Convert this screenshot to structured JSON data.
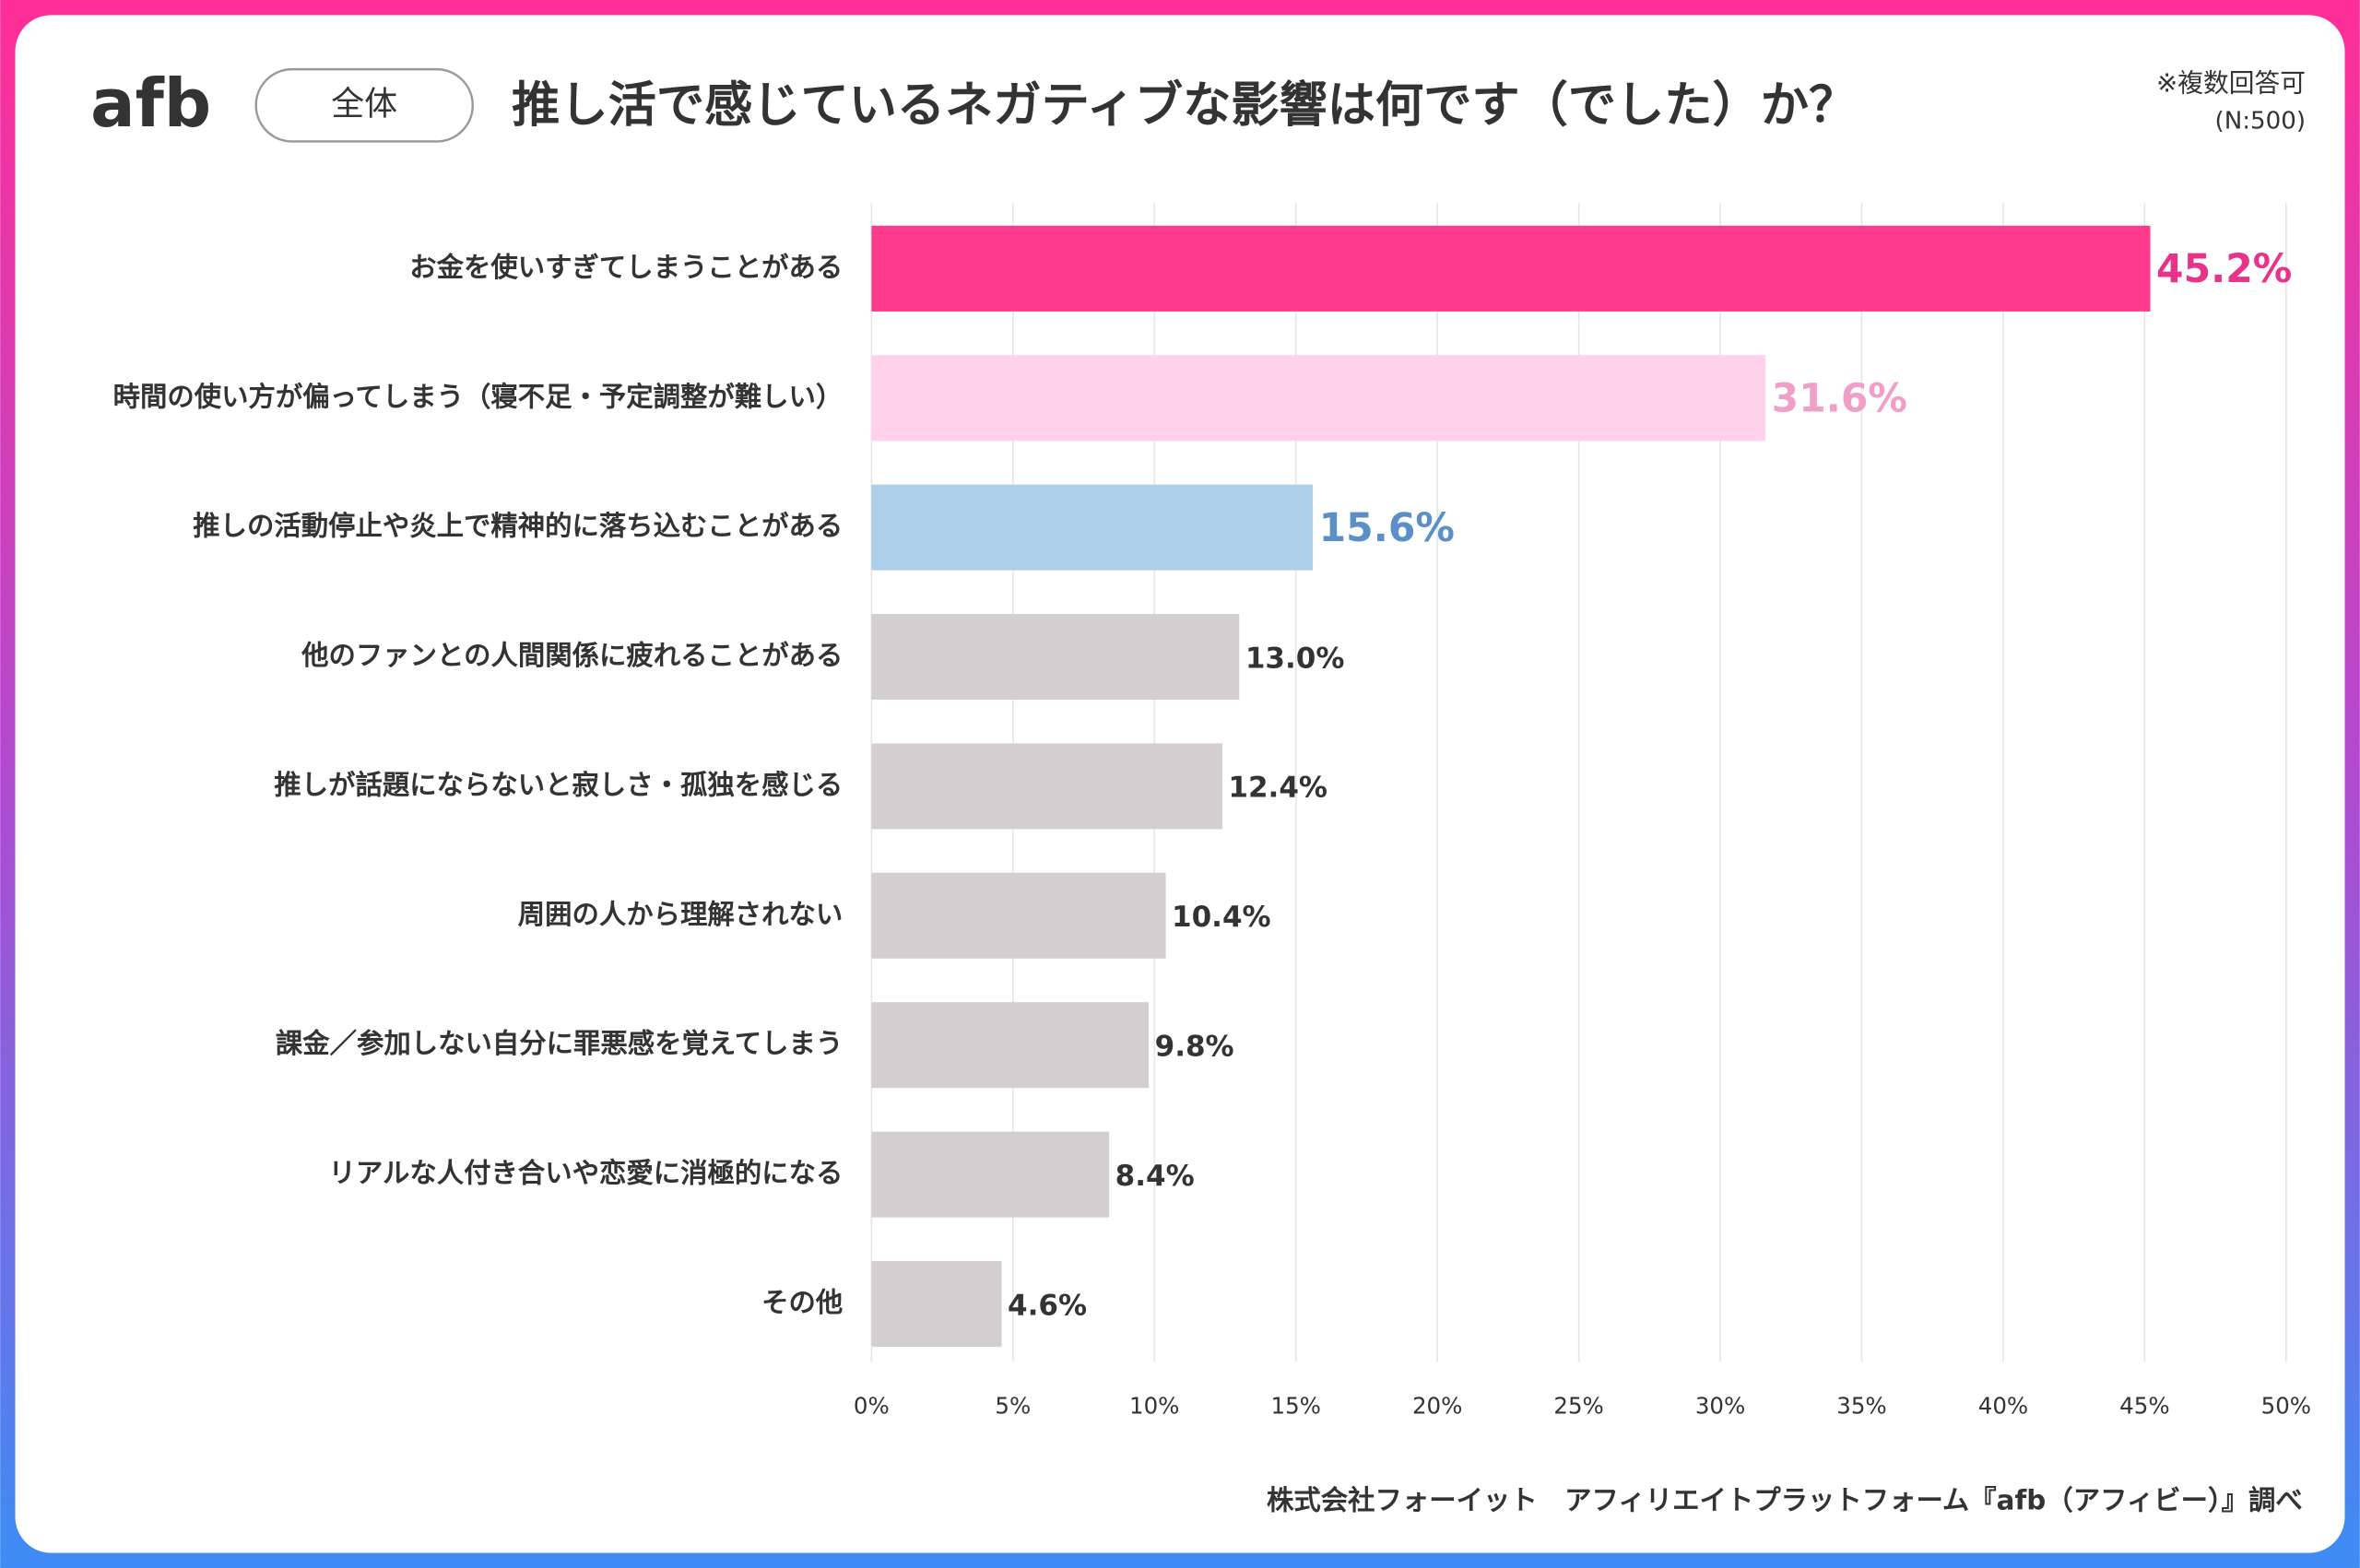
{
  "chart_data": {
    "type": "barh",
    "logo": "afb",
    "badge": "全体",
    "title": "推し活で感じているネガティブな影響は何です（でした）か？",
    "note": "※複数回答可",
    "sample": "(N:500)",
    "source": "株式会社フォーイット　アフィリエイトプラットフォーム『afb（アフィビー）』調べ",
    "categories": [
      "お金を使いすぎてしまうことがある",
      "時間の使い方が偏ってしまう（寝不足・予定調整が難しい）",
      "推しの活動停止や炎上で精神的に落ち込むことがある",
      "他のファンとの人間関係に疲れることがある",
      "推しが話題にならないと寂しさ・孤独を感じる",
      "周囲の人から理解されない",
      "課金／参加しない自分に罪悪感を覚えてしまう",
      "リアルな人付き合いや恋愛に消極的になる",
      "その他"
    ],
    "values": [
      45.2,
      31.6,
      15.6,
      13.0,
      12.4,
      10.4,
      9.8,
      8.4,
      4.6
    ],
    "value_labels": [
      "45.2%",
      "31.6%",
      "15.6%",
      "13.0%",
      "12.4%",
      "10.4%",
      "9.8%",
      "8.4%",
      "4.6%"
    ],
    "colors": [
      "#ff3b8d",
      "#ffd1ea",
      "#aecfea",
      "#d3cfd0",
      "#d3cfd0",
      "#d3cfd0",
      "#d3cfd0",
      "#d3cfd0",
      "#d3cfd0"
    ],
    "label_colors": [
      "#e8338a",
      "#f0a0c8",
      "#5b8fc7",
      "#333333",
      "#333333",
      "#333333",
      "#333333",
      "#333333",
      "#333333"
    ],
    "xlim": [
      0,
      50
    ],
    "xticks": [
      {
        "value": 0,
        "label": "0%"
      },
      {
        "value": 5,
        "label": "5%"
      },
      {
        "value": 10,
        "label": "10%"
      },
      {
        "value": 15,
        "label": "15%"
      },
      {
        "value": 20,
        "label": "20%"
      },
      {
        "value": 25,
        "label": "25%"
      },
      {
        "value": 30,
        "label": "30%"
      },
      {
        "value": 35,
        "label": "35%"
      },
      {
        "value": 40,
        "label": "40%"
      },
      {
        "value": 45,
        "label": "45%"
      },
      {
        "value": 50,
        "label": "50%"
      }
    ],
    "grid": true
  }
}
